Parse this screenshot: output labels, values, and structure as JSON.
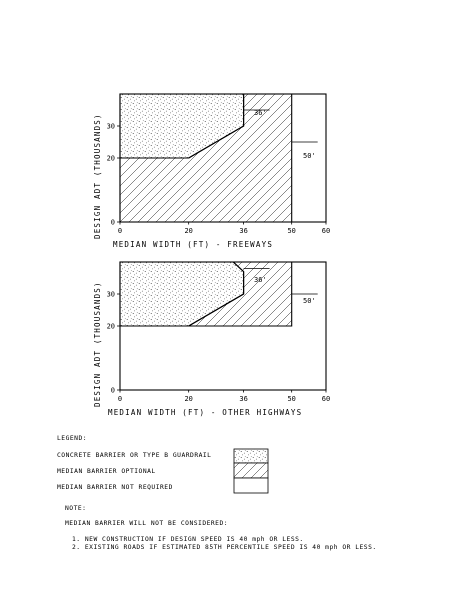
{
  "chart_data": [
    {
      "type": "area",
      "xlabel": "MEDIAN WIDTH (FT) - FREEWAYS",
      "ylabel": "DESIGN ADT (THOUSANDS)",
      "xlim": [
        0,
        60
      ],
      "ylim": [
        0,
        40
      ],
      "x_ticks": [
        "0",
        "20",
        "36",
        "50",
        "60"
      ],
      "y_ticks": [
        "0",
        "20",
        "30"
      ],
      "regions": [
        {
          "name": "CONCRETE BARRIER OR TYPE B GUARDRAIL",
          "pattern": "dots",
          "polygon": [
            [
              0,
              20
            ],
            [
              20,
              20
            ],
            [
              36,
              30
            ],
            [
              36,
              40
            ],
            [
              0,
              40
            ]
          ]
        },
        {
          "name": "MEDIAN BARRIER OPTIONAL",
          "pattern": "hatch",
          "polygon": [
            [
              20,
              20
            ],
            [
              36,
              30
            ],
            [
              36,
              40
            ],
            [
              50,
              40
            ],
            [
              50,
              0
            ],
            [
              0,
              0
            ],
            [
              0,
              20
            ]
          ]
        },
        {
          "name": "MEDIAN BARRIER NOT REQUIRED",
          "pattern": "none",
          "polygon": [
            [
              50,
              0
            ],
            [
              60,
              0
            ],
            [
              60,
              40
            ],
            [
              50,
              40
            ]
          ]
        }
      ],
      "annotations": [
        {
          "text": "36'",
          "x": 36,
          "y": 35
        },
        {
          "text": "50'",
          "x": 50,
          "y": 25
        }
      ]
    },
    {
      "type": "area",
      "xlabel": "MEDIAN WIDTH (FT) - OTHER HIGHWAYS",
      "ylabel": "DESIGN ADT (THOUSANDS)",
      "xlim": [
        0,
        60
      ],
      "ylim": [
        0,
        40
      ],
      "x_ticks": [
        "0",
        "20",
        "36",
        "50",
        "60"
      ],
      "y_ticks": [
        "0",
        "20",
        "30"
      ],
      "regions": [
        {
          "name": "CONCRETE BARRIER OR TYPE B GUARDRAIL",
          "pattern": "dots",
          "polygon": [
            [
              0,
              20
            ],
            [
              20,
              20
            ],
            [
              36,
              30
            ],
            [
              36,
              37
            ],
            [
              33,
              40
            ],
            [
              0,
              40
            ]
          ]
        },
        {
          "name": "MEDIAN BARRIER OPTIONAL",
          "pattern": "hatch",
          "polygon": [
            [
              20,
              20
            ],
            [
              36,
              30
            ],
            [
              36,
              37
            ],
            [
              33,
              40
            ],
            [
              50,
              40
            ],
            [
              50,
              20
            ]
          ]
        },
        {
          "name": "MEDIAN BARRIER NOT REQUIRED",
          "pattern": "none",
          "polygon": [
            [
              0,
              0
            ],
            [
              60,
              0
            ],
            [
              60,
              40
            ],
            [
              50,
              40
            ],
            [
              50,
              20
            ],
            [
              0,
              20
            ]
          ]
        }
      ],
      "annotations": [
        {
          "text": "36'",
          "x": 36,
          "y": 38
        },
        {
          "text": "50'",
          "x": 50,
          "y": 30
        }
      ]
    }
  ],
  "legend": {
    "title": "LEGEND:",
    "items": [
      {
        "label": "CONCRETE BARRIER OR TYPE B GUARDRAIL",
        "pattern": "dots"
      },
      {
        "label": "MEDIAN BARRIER OPTIONAL",
        "pattern": "hatch"
      },
      {
        "label": "MEDIAN BARRIER NOT REQUIRED",
        "pattern": "none"
      }
    ]
  },
  "note": {
    "title": "NOTE:",
    "intro": "MEDIAN BARRIER WILL NOT BE CONSIDERED:",
    "items": [
      "1. NEW CONSTRUCTION IF DESIGN SPEED IS 40 mph OR LESS.",
      "2. EXISTING ROADS IF ESTIMATED 85TH PERCENTILE SPEED IS 40 mph OR LESS."
    ]
  },
  "colors": {
    "ink": "#000000",
    "paper": "#ffffff"
  }
}
